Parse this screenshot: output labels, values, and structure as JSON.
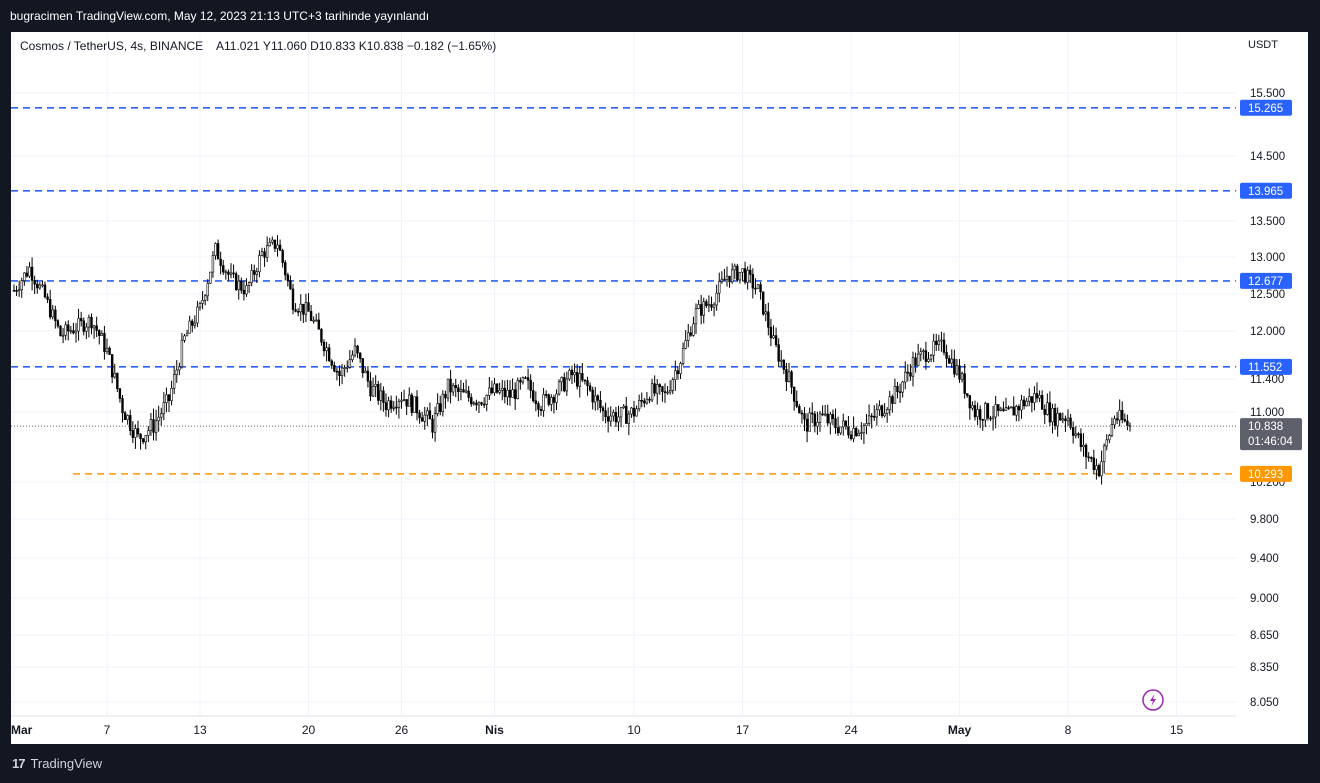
{
  "header": {
    "publish_text": "bugracimen TradingView.com, May 12, 2023 21:13 UTC+3 tarihinde yayınlandı"
  },
  "legend": {
    "symbol": "Cosmos / TetherUS, 4s, BINANCE",
    "ohlc": "A11.021  Y11.060  D10.833  K10.838  −0.182 (−1.65%)"
  },
  "footer": {
    "brand": "TradingView",
    "logo": "17"
  },
  "colors": {
    "level_blue": "#2962ff",
    "level_orange": "#ff9800",
    "candle": "#000000",
    "last_price_bg": "#5d606b",
    "grid": "#f0f3fa",
    "page_bg": "#131722"
  },
  "chart_data": {
    "type": "candlestick",
    "title": "Cosmos / TetherUS, 4s, BINANCE",
    "currency": "USDT",
    "y_axis_ticks": [
      "15.500",
      "14.500",
      "13.500",
      "13.000",
      "12.500",
      "12.000",
      "11.400",
      "11.000",
      "10.200",
      "9.800",
      "9.400",
      "9.000",
      "8.650",
      "8.350",
      "8.050"
    ],
    "x_axis_ticks": [
      "Mar",
      "7",
      "13",
      "20",
      "26",
      "Nis",
      "10",
      "17",
      "24",
      "May",
      "8",
      "15"
    ],
    "horizontal_levels": [
      {
        "value": 15.265,
        "label": "15.265",
        "color": "#2962ff"
      },
      {
        "value": 13.965,
        "label": "13.965",
        "color": "#2962ff"
      },
      {
        "value": 12.677,
        "label": "12.677",
        "color": "#2962ff"
      },
      {
        "value": 11.552,
        "label": "11.552",
        "color": "#2962ff"
      },
      {
        "value": 10.293,
        "label": "10.293",
        "color": "#ff9800"
      }
    ],
    "last_price": {
      "label": "10.838",
      "countdown": "01:46:04"
    },
    "price_path": [
      [
        "2023-03-01",
        12.55
      ],
      [
        "2023-03-02",
        12.85
      ],
      [
        "2023-03-03",
        12.45
      ],
      [
        "2023-03-04",
        11.95
      ],
      [
        "2023-03-05",
        12.05
      ],
      [
        "2023-03-06",
        12.15
      ],
      [
        "2023-03-07",
        11.75
      ],
      [
        "2023-03-08",
        11.05
      ],
      [
        "2023-03-09",
        10.7
      ],
      [
        "2023-03-10",
        10.85
      ],
      [
        "2023-03-11",
        11.15
      ],
      [
        "2023-03-12",
        11.9
      ],
      [
        "2023-03-13",
        12.3
      ],
      [
        "2023-03-14",
        13.1
      ],
      [
        "2023-03-15",
        12.7
      ],
      [
        "2023-03-16",
        12.55
      ],
      [
        "2023-03-17",
        13.05
      ],
      [
        "2023-03-18",
        13.2
      ],
      [
        "2023-03-19",
        12.4
      ],
      [
        "2023-03-20",
        12.25
      ],
      [
        "2023-03-21",
        11.85
      ],
      [
        "2023-03-22",
        11.45
      ],
      [
        "2023-03-23",
        11.75
      ],
      [
        "2023-03-24",
        11.3
      ],
      [
        "2023-03-25",
        11.1
      ],
      [
        "2023-03-26",
        11.2
      ],
      [
        "2023-03-27",
        11.05
      ],
      [
        "2023-03-28",
        10.85
      ],
      [
        "2023-03-29",
        11.3
      ],
      [
        "2023-03-30",
        11.2
      ],
      [
        "2023-03-31",
        11.15
      ],
      [
        "2023-04-01",
        11.25
      ],
      [
        "2023-04-02",
        11.2
      ],
      [
        "2023-04-03",
        11.35
      ],
      [
        "2023-04-04",
        11.1
      ],
      [
        "2023-04-05",
        11.25
      ],
      [
        "2023-04-06",
        11.45
      ],
      [
        "2023-04-07",
        11.3
      ],
      [
        "2023-04-08",
        11.0
      ],
      [
        "2023-04-09",
        10.95
      ],
      [
        "2023-04-10",
        11.0
      ],
      [
        "2023-04-11",
        11.25
      ],
      [
        "2023-04-12",
        11.2
      ],
      [
        "2023-04-13",
        11.65
      ],
      [
        "2023-04-14",
        12.25
      ],
      [
        "2023-04-15",
        12.4
      ],
      [
        "2023-04-16",
        12.75
      ],
      [
        "2023-04-17",
        12.8
      ],
      [
        "2023-04-18",
        12.55
      ],
      [
        "2023-04-19",
        11.85
      ],
      [
        "2023-04-20",
        11.4
      ],
      [
        "2023-04-21",
        10.85
      ],
      [
        "2023-04-22",
        10.95
      ],
      [
        "2023-04-23",
        10.85
      ],
      [
        "2023-04-24",
        10.8
      ],
      [
        "2023-04-25",
        10.85
      ],
      [
        "2023-04-26",
        11.05
      ],
      [
        "2023-04-27",
        11.25
      ],
      [
        "2023-04-28",
        11.6
      ],
      [
        "2023-04-29",
        11.75
      ],
      [
        "2023-04-30",
        11.8
      ],
      [
        "2023-05-01",
        11.45
      ],
      [
        "2023-05-02",
        11.0
      ],
      [
        "2023-05-03",
        11.0
      ],
      [
        "2023-05-04",
        10.95
      ],
      [
        "2023-05-05",
        11.1
      ],
      [
        "2023-05-06",
        11.2
      ],
      [
        "2023-05-07",
        10.95
      ],
      [
        "2023-05-08",
        10.95
      ],
      [
        "2023-05-09",
        10.55
      ],
      [
        "2023-05-10",
        10.35
      ],
      [
        "2023-05-11",
        10.95
      ],
      [
        "2023-05-12",
        10.838
      ]
    ]
  }
}
